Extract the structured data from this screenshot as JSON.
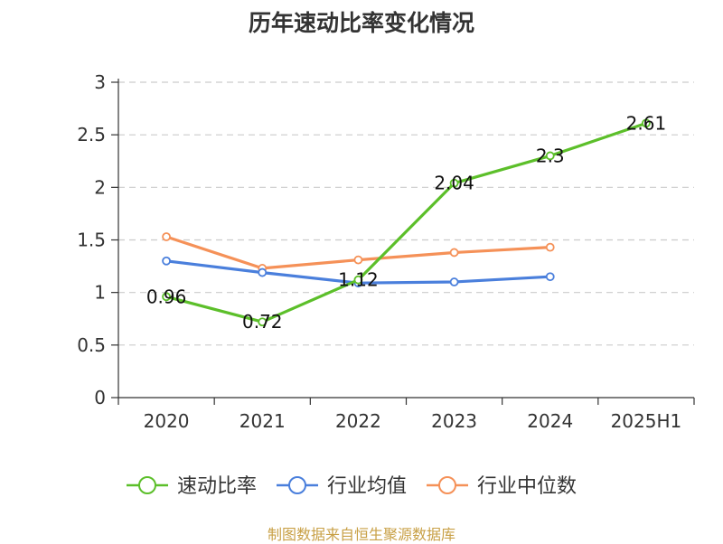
{
  "chart_data": {
    "type": "line",
    "title": "历年速动比率变化情况",
    "categories": [
      "2020",
      "2021",
      "2022",
      "2023",
      "2024",
      "2025H1"
    ],
    "ylim": [
      0,
      3
    ],
    "yticks": [
      "0",
      "0.5",
      "1",
      "1.5",
      "2",
      "2.5",
      "3"
    ],
    "grid": true,
    "legend_position": "bottom",
    "series": [
      {
        "name": "速动比率",
        "color": "#5cbf2a",
        "values": [
          0.96,
          0.72,
          1.12,
          2.04,
          2.3,
          2.61
        ],
        "labels": [
          "0.96",
          "0.72",
          "1.12",
          "2.04",
          "2.3",
          "2.61"
        ]
      },
      {
        "name": "行业均值",
        "color": "#4a7fdc",
        "values": [
          1.3,
          1.19,
          1.09,
          1.1,
          1.15,
          null
        ]
      },
      {
        "name": "行业中位数",
        "color": "#f59158",
        "values": [
          1.53,
          1.23,
          1.31,
          1.38,
          1.43,
          null
        ]
      }
    ]
  },
  "source_text": "制图数据来自恒生聚源数据库"
}
